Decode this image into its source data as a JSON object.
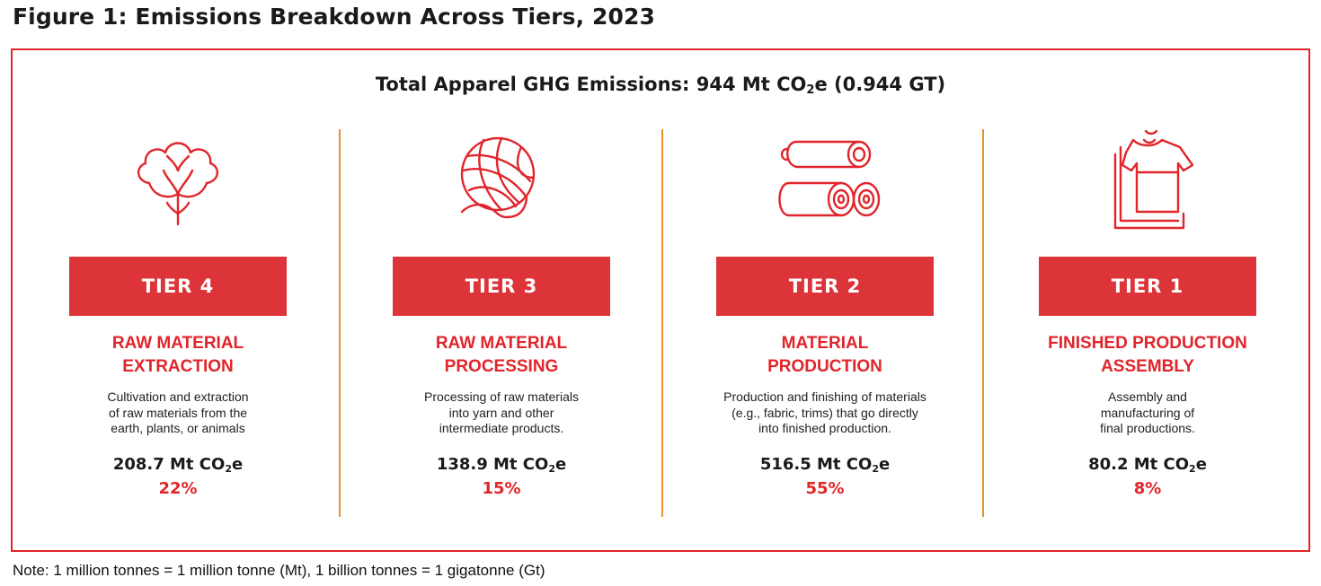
{
  "figure_title": "Figure 1: Emissions Breakdown Across Tiers, 2023",
  "total": {
    "prefix": "Total Apparel GHG Emissions: 944 Mt CO",
    "sub": "2",
    "suffix": "e (0.944 GT)"
  },
  "tiers": [
    {
      "icon": "cotton-icon",
      "label": "TIER 4",
      "heading": [
        "RAW MATERIAL",
        "EXTRACTION"
      ],
      "desc": [
        "Cultivation and extraction",
        "of raw materials from the",
        "earth, plants, or animals"
      ],
      "value": "208.7 Mt CO",
      "value_sub": "2",
      "value_suffix": "e",
      "percent": "22%"
    },
    {
      "icon": "yarn-ball-icon",
      "label": "TIER 3",
      "heading": [
        "RAW MATERIAL",
        "PROCESSING"
      ],
      "desc": [
        "Processing of raw materials",
        "into yarn and other",
        "intermediate products."
      ],
      "value": "138.9 Mt CO",
      "value_sub": "2",
      "value_suffix": "e",
      "percent": "15%"
    },
    {
      "icon": "fabric-rolls-icon",
      "label": "TIER 2",
      "heading": [
        "MATERIAL",
        "PRODUCTION"
      ],
      "desc": [
        "Production and finishing of materials",
        "(e.g., fabric, trims) that go directly",
        "into finished production."
      ],
      "value": "516.5 Mt CO",
      "value_sub": "2",
      "value_suffix": "e",
      "percent": "55%"
    },
    {
      "icon": "tshirt-icon",
      "label": "TIER 1",
      "heading": [
        "FINISHED PRODUCTION",
        "ASSEMBLY"
      ],
      "desc": [
        "Assembly and",
        "manufacturing of",
        "final productions."
      ],
      "value": "80.2 Mt CO",
      "value_sub": "2",
      "value_suffix": "e",
      "percent": "8%"
    }
  ],
  "note": "Note: 1 million tonnes = 1 million tonne (Mt), 1 billion tonnes = 1 gigatonne (Gt)",
  "colors": {
    "accent": "#e0252b",
    "tier_box": "#dc3439",
    "divider": "#e8922c"
  }
}
